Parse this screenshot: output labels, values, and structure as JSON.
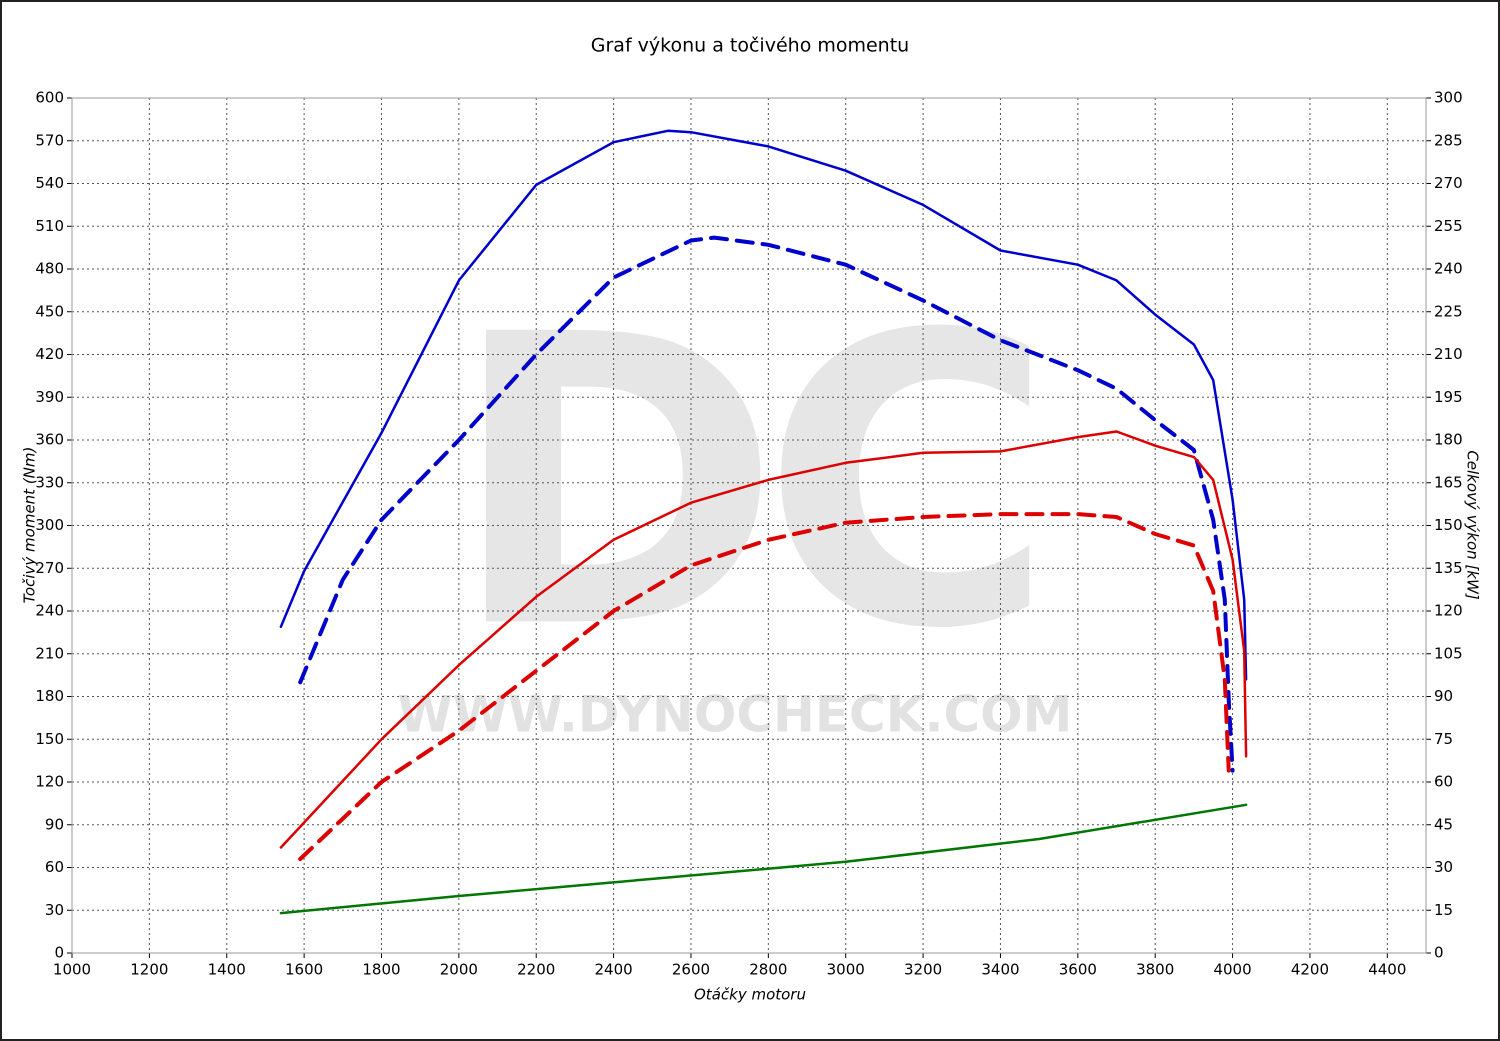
{
  "chart_data": {
    "type": "line",
    "title": "Graf výkonu a točivého momentu",
    "x_label": "Otáčky motoru",
    "y_label": "Točivý moment (Nm)",
    "y2_label": "Celkový výkon [kW]",
    "watermark": {
      "logo": "DC",
      "url": "WWW.DYNOCHECK.COM"
    },
    "grid": true,
    "xlim": [
      1000,
      4500
    ],
    "xticks": [
      1000,
      1200,
      1400,
      1600,
      1800,
      2000,
      2200,
      2400,
      2600,
      2800,
      3000,
      3200,
      3400,
      3600,
      3800,
      4000,
      4200,
      4400
    ],
    "ylim": [
      0,
      600
    ],
    "yticks": [
      0,
      30,
      60,
      90,
      120,
      150,
      180,
      210,
      240,
      270,
      300,
      330,
      360,
      390,
      420,
      450,
      480,
      510,
      540,
      570,
      600
    ],
    "y2lim": [
      0,
      300
    ],
    "y2ticks": [
      0,
      15,
      30,
      45,
      60,
      75,
      90,
      105,
      120,
      135,
      150,
      165,
      180,
      195,
      210,
      225,
      240,
      255,
      270,
      285,
      300
    ],
    "series": [
      {
        "color": "#0000cc",
        "dashed": false,
        "axis": "y",
        "x": [
          1540,
          1600,
          1800,
          2000,
          2200,
          2400,
          2540,
          2600,
          2800,
          3000,
          3200,
          3400,
          3600,
          3700,
          3800,
          3900,
          3950,
          4000,
          4030,
          4035
        ],
        "values": [
          229,
          268,
          365,
          472,
          539,
          569,
          577,
          576,
          566,
          549,
          525,
          493,
          483,
          472,
          448,
          427,
          402,
          318,
          248,
          192
        ]
      },
      {
        "color": "#0000cc",
        "dashed": true,
        "axis": "y",
        "x": [
          1590,
          1700,
          1800,
          2000,
          2200,
          2400,
          2600,
          2660,
          2800,
          3000,
          3200,
          3400,
          3600,
          3700,
          3800,
          3900,
          3950,
          3980,
          3990,
          4000
        ],
        "values": [
          190,
          262,
          304,
          360,
          420,
          474,
          500,
          502,
          497,
          483,
          458,
          430,
          409,
          396,
          374,
          353,
          304,
          248,
          178,
          128
        ]
      },
      {
        "color": "#dd0000",
        "dashed": false,
        "axis": "y2",
        "x": [
          1540,
          1800,
          2000,
          2200,
          2400,
          2600,
          2800,
          3000,
          3200,
          3400,
          3600,
          3700,
          3800,
          3900,
          3950,
          4000,
          4030,
          4035
        ],
        "values": [
          37,
          75,
          101,
          125,
          145,
          158,
          166,
          172,
          175.5,
          176,
          181,
          183,
          178,
          174,
          166,
          138,
          106,
          69
        ]
      },
      {
        "color": "#dd0000",
        "dashed": true,
        "axis": "y2",
        "x": [
          1590,
          1800,
          2000,
          2200,
          2400,
          2600,
          2800,
          3000,
          3200,
          3400,
          3600,
          3700,
          3800,
          3900,
          3950,
          3980,
          3990
        ],
        "values": [
          33,
          60,
          78,
          99,
          120,
          136,
          145,
          151,
          153,
          154,
          154,
          153,
          147,
          143,
          127,
          96,
          64
        ]
      },
      {
        "color": "#007700",
        "dashed": false,
        "axis": "y2",
        "x": [
          1540,
          2000,
          2500,
          3000,
          3500,
          4035
        ],
        "values": [
          14,
          20,
          26,
          32,
          40,
          52
        ]
      }
    ]
  }
}
